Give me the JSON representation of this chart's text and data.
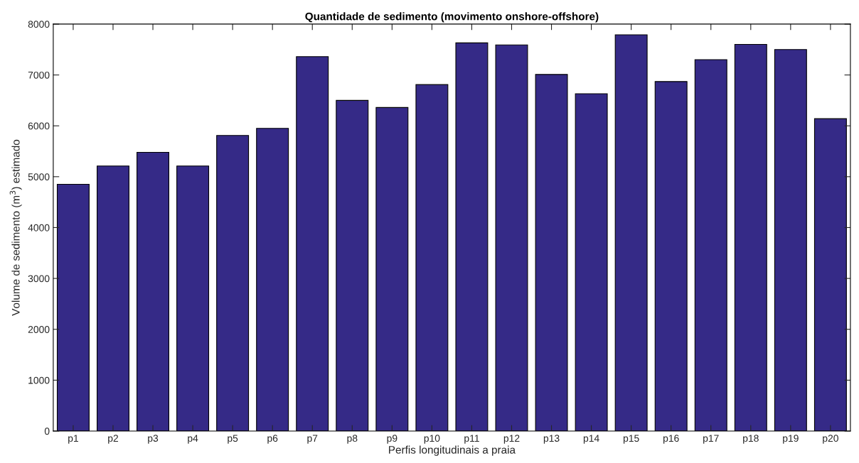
{
  "chart_data": {
    "type": "bar",
    "title": "Quantidade de sedimento (movimento onshore-offshore)",
    "xlabel": "Perfis longitudinais a praia",
    "ylabel": "Volume de sedimento (m$^{3}$) estimado",
    "categories": [
      "p1",
      "p2",
      "p3",
      "p4",
      "p5",
      "p6",
      "p7",
      "p8",
      "p9",
      "p10",
      "p11",
      "p12",
      "p13",
      "p14",
      "p15",
      "p16",
      "p17",
      "p18",
      "p19",
      "p20"
    ],
    "values": [
      4850,
      5210,
      5480,
      5210,
      5810,
      5950,
      7360,
      6500,
      6360,
      6810,
      7630,
      7590,
      7010,
      6630,
      7790,
      6870,
      7300,
      7600,
      7500,
      6140
    ],
    "color": "#352a87",
    "ylim": [
      0,
      8000
    ],
    "yticks": [
      0,
      1000,
      2000,
      3000,
      4000,
      5000,
      6000,
      7000,
      8000
    ],
    "grid": false,
    "legend": false
  }
}
